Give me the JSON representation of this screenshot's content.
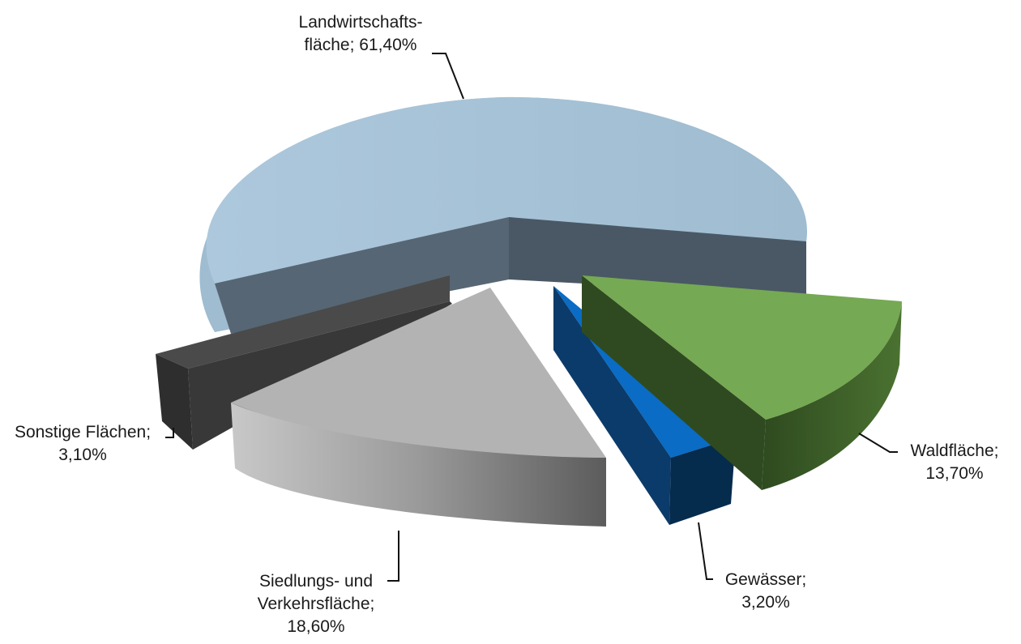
{
  "chart_data": {
    "type": "pie",
    "title": "",
    "style": "3d-exploded",
    "slices": [
      {
        "label_lines": [
          "Landwirtschafts-",
          "fläche; 61,40%"
        ],
        "name": "Landwirtschaftsfläche",
        "value": 61.4,
        "display": "61,40%",
        "color": "#a9c9df",
        "side_color": "#5a6b79"
      },
      {
        "label_lines": [
          "Waldfläche;",
          "13,70%"
        ],
        "name": "Waldfläche",
        "value": 13.7,
        "display": "13,70%",
        "color": "#72a450",
        "side_color": "#3a5727"
      },
      {
        "label_lines": [
          "Gewässer;",
          "3,20%"
        ],
        "name": "Gewässer",
        "value": 3.2,
        "display": "3,20%",
        "color": "#0a6cc4",
        "side_color": "#052b4d"
      },
      {
        "label_lines": [
          "Siedlungs- und",
          "Verkehrsfläche;",
          "18,60%"
        ],
        "name": "Siedlungs- und Verkehrsfläche",
        "value": 18.6,
        "display": "18,60%",
        "color": "#b4b4b4",
        "side_color": "#7a7a7a"
      },
      {
        "label_lines": [
          "Sonstige Flächen;",
          "3,10%"
        ],
        "name": "Sonstige Flächen",
        "value": 3.1,
        "display": "3,10%",
        "color": "#4a4a4a",
        "side_color": "#2b2b2b"
      }
    ],
    "legend": "none"
  }
}
